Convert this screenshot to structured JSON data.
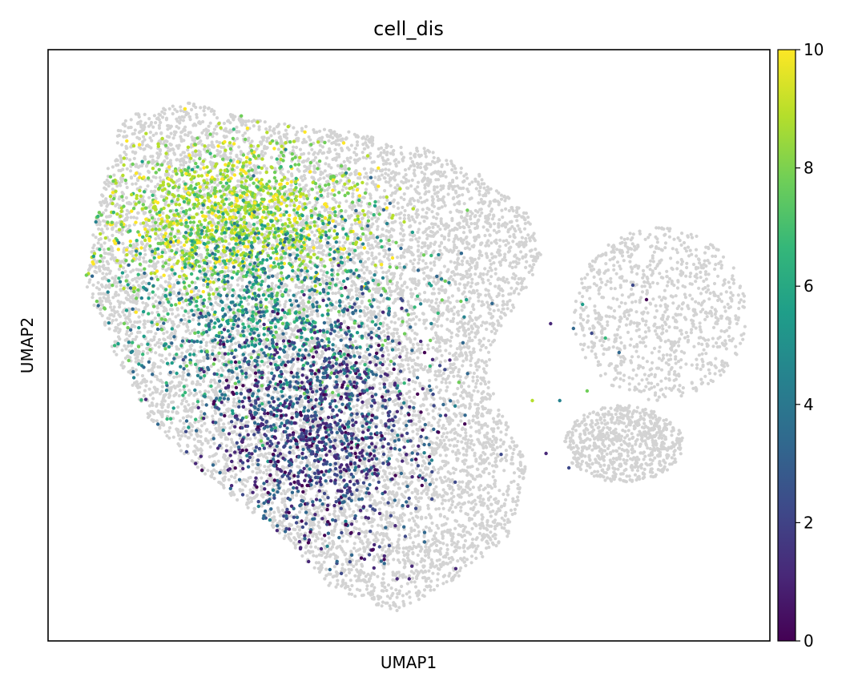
{
  "chart_data": {
    "type": "scatter",
    "title": "cell_dis",
    "xlabel": "UMAP1",
    "ylabel": "UMAP2",
    "x_ticks_shown": false,
    "y_ticks_shown": false,
    "grid": false,
    "background_color": "#d3d3d3",
    "colorbar": {
      "colormap": "viridis",
      "vmin": 0,
      "vmax": 10,
      "ticks": [
        0,
        2,
        4,
        6,
        8,
        10
      ],
      "tick_labels": [
        "0",
        "2",
        "4",
        "6",
        "8",
        "10"
      ],
      "stops": [
        "#440154",
        "#482878",
        "#3e4989",
        "#31688e",
        "#26828e",
        "#1f9e89",
        "#35b779",
        "#6ece58",
        "#b5de2b",
        "#fde725"
      ]
    },
    "series": [
      {
        "role": "unassigned cells (grey background)",
        "color": "#d3d3d3",
        "regions": [
          {
            "label": "main mass",
            "x": [
              -7.0,
              3.6
            ],
            "y": [
              -6.5,
              4.2
            ],
            "n": 9000
          },
          {
            "label": "upper-right cluster",
            "x": [
              3.9,
              7.7
            ],
            "y": [
              -2.2,
              1.8
            ],
            "n": 900
          },
          {
            "label": "lower-right cluster",
            "x": [
              3.7,
              6.3
            ],
            "y": [
              -3.8,
              -2.0
            ],
            "n": 700
          }
        ]
      },
      {
        "role": "cells colored by cell_dis",
        "value_gradient": "high values (8-10, yellow/green) concentrated at upper-left; low values (0-3, purple/blue) concentrated at lower-center; mid values (4-7, teal) in between",
        "regions": [
          {
            "label": "high",
            "x_center": -3.6,
            "y_center": 1.8,
            "value_range": [
              7,
              10
            ],
            "n": 1300
          },
          {
            "label": "mid",
            "x_center": -2.8,
            "y_center": -0.2,
            "value_range": [
              3,
              8
            ],
            "n": 1000
          },
          {
            "label": "low",
            "x_center": -1.7,
            "y_center": -2.6,
            "value_range": [
              0,
              4
            ],
            "n": 1300
          }
        ]
      }
    ]
  }
}
